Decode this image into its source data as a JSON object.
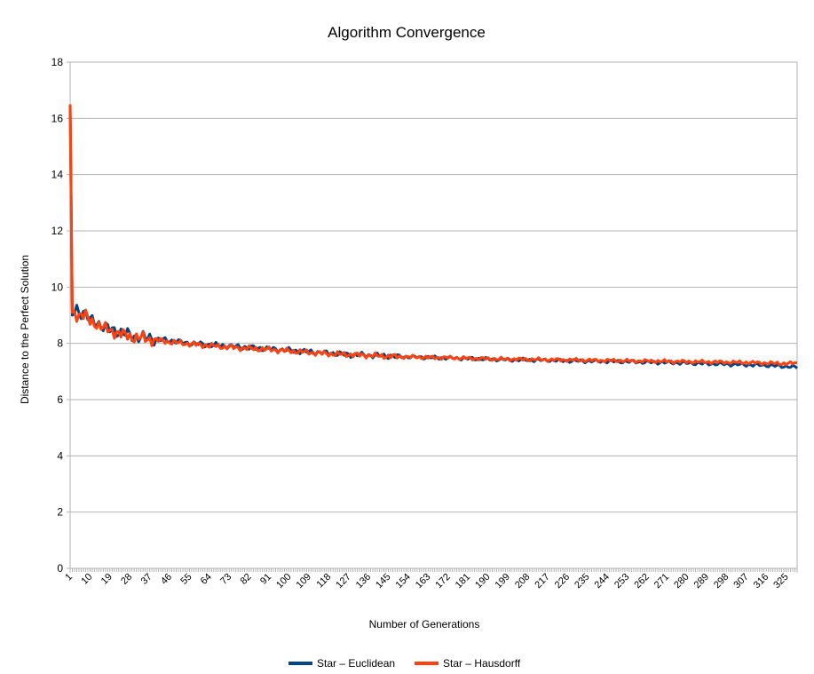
{
  "chart_data": {
    "type": "line",
    "title": "Algorithm Convergence",
    "xlabel": "Number of Generations",
    "ylabel": "Distance to the Perfect Solution",
    "ylim": [
      0,
      18
    ],
    "yticks": [
      0,
      2,
      4,
      6,
      8,
      10,
      12,
      14,
      16,
      18
    ],
    "x_range": [
      1,
      330
    ],
    "xticks": [
      1,
      10,
      19,
      28,
      37,
      46,
      55,
      64,
      73,
      82,
      91,
      100,
      109,
      118,
      127,
      136,
      145,
      154,
      163,
      172,
      181,
      190,
      199,
      208,
      217,
      226,
      235,
      244,
      253,
      262,
      271,
      280,
      289,
      298,
      307,
      316,
      325
    ],
    "grid": "horizontal",
    "legend_position": "bottom",
    "series": [
      {
        "name": "Star – Euclidean",
        "color": "#004586",
        "x": [
          1,
          2,
          4,
          6,
          8,
          10,
          13,
          16,
          19,
          22,
          25,
          28,
          31,
          34,
          37,
          40,
          46,
          55,
          64,
          73,
          82,
          91,
          100,
          109,
          118,
          127,
          136,
          145,
          154,
          163,
          172,
          181,
          190,
          199,
          208,
          217,
          226,
          235,
          244,
          253,
          262,
          271,
          280,
          289,
          298,
          307,
          316,
          325,
          330
        ],
        "values": [
          16.5,
          9.0,
          9.2,
          9.1,
          9.1,
          8.8,
          8.75,
          8.6,
          8.5,
          8.45,
          8.35,
          8.3,
          8.25,
          8.2,
          8.2,
          8.15,
          8.1,
          8.0,
          7.95,
          7.9,
          7.85,
          7.8,
          7.75,
          7.7,
          7.65,
          7.6,
          7.58,
          7.55,
          7.52,
          7.5,
          7.48,
          7.46,
          7.44,
          7.42,
          7.41,
          7.4,
          7.38,
          7.37,
          7.36,
          7.35,
          7.33,
          7.32,
          7.3,
          7.28,
          7.26,
          7.24,
          7.22,
          7.18,
          7.15
        ]
      },
      {
        "name": "Star – Hausdorff",
        "color": "#ff420e",
        "x": [
          1,
          2,
          4,
          6,
          8,
          10,
          13,
          16,
          19,
          22,
          25,
          28,
          31,
          34,
          37,
          40,
          46,
          55,
          64,
          73,
          82,
          91,
          100,
          109,
          118,
          127,
          136,
          145,
          154,
          163,
          172,
          181,
          190,
          199,
          208,
          217,
          226,
          235,
          244,
          253,
          262,
          271,
          280,
          289,
          298,
          307,
          316,
          325,
          330
        ],
        "values": [
          16.5,
          9.1,
          9.0,
          9.05,
          9.0,
          8.75,
          8.7,
          8.55,
          8.45,
          8.4,
          8.3,
          8.25,
          8.2,
          8.18,
          8.15,
          8.12,
          8.05,
          7.98,
          7.92,
          7.86,
          7.82,
          7.78,
          7.73,
          7.68,
          7.63,
          7.6,
          7.57,
          7.54,
          7.52,
          7.5,
          7.49,
          7.47,
          7.45,
          7.44,
          7.43,
          7.42,
          7.41,
          7.4,
          7.39,
          7.38,
          7.37,
          7.36,
          7.35,
          7.34,
          7.33,
          7.32,
          7.3,
          7.28,
          7.3
        ]
      }
    ]
  }
}
